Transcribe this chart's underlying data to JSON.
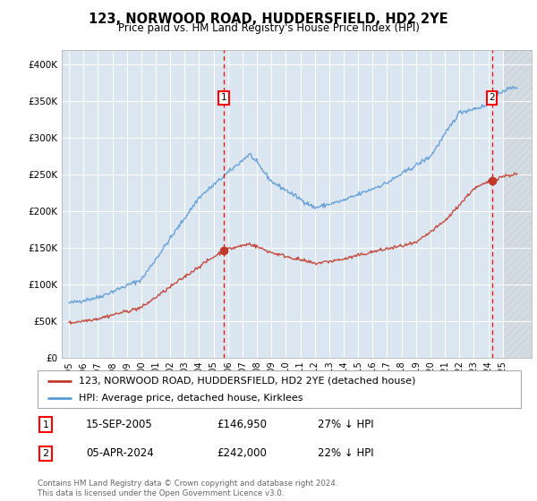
{
  "title": "123, NORWOOD ROAD, HUDDERSFIELD, HD2 2YE",
  "subtitle": "Price paid vs. HM Land Registry's House Price Index (HPI)",
  "legend_line1": "123, NORWOOD ROAD, HUDDERSFIELD, HD2 2YE (detached house)",
  "legend_line2": "HPI: Average price, detached house, Kirklees",
  "transaction1_date": "15-SEP-2005",
  "transaction1_price": "£146,950",
  "transaction1_hpi": "27% ↓ HPI",
  "transaction2_date": "05-APR-2024",
  "transaction2_price": "£242,000",
  "transaction2_hpi": "22% ↓ HPI",
  "footer": "Contains HM Land Registry data © Crown copyright and database right 2024.\nThis data is licensed under the Open Government Licence v3.0.",
  "hpi_color": "#5b9bd5",
  "price_color": "#c0392b",
  "plot_bg": "#dce6f1",
  "marker1_x": 2005.7,
  "marker1_y": 146950,
  "marker2_x": 2024.25,
  "marker2_y": 242000,
  "ylim_min": 0,
  "ylim_max": 420000,
  "xlim_min": 1994.5,
  "xlim_max": 2027.0,
  "yticks": [
    0,
    50000,
    100000,
    150000,
    200000,
    250000,
    300000,
    350000,
    400000
  ],
  "ytick_labels": [
    "£0",
    "£50K",
    "£100K",
    "£150K",
    "£200K",
    "£250K",
    "£300K",
    "£350K",
    "£400K"
  ],
  "xticks": [
    1995,
    1996,
    1997,
    1998,
    1999,
    2000,
    2001,
    2002,
    2003,
    2004,
    2005,
    2006,
    2007,
    2008,
    2009,
    2010,
    2011,
    2012,
    2013,
    2014,
    2015,
    2016,
    2017,
    2018,
    2019,
    2020,
    2021,
    2022,
    2023,
    2024,
    2025
  ]
}
